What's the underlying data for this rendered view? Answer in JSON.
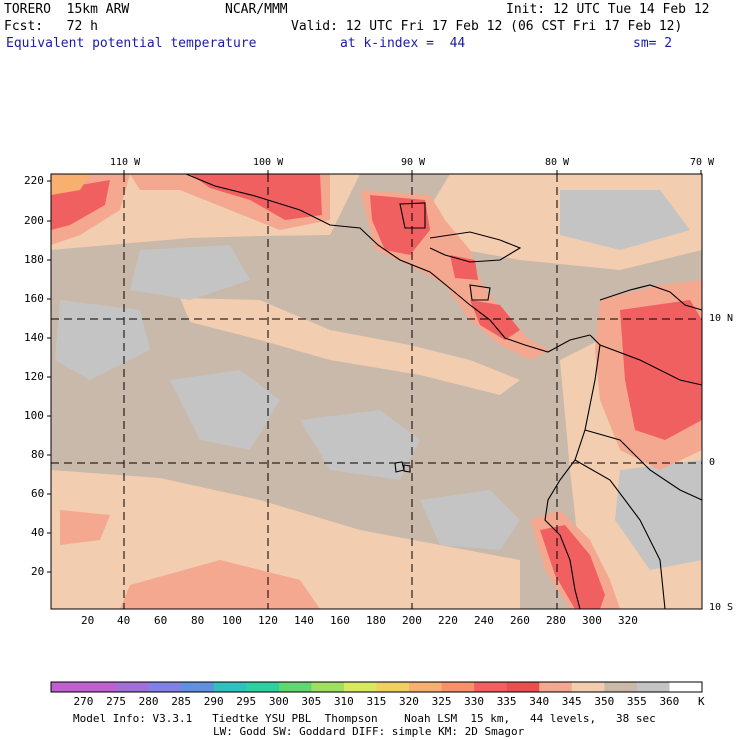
{
  "header": {
    "model": "TORERO  15km ARW",
    "org": "NCAR/MMM",
    "init": "Init: 12 UTC Tue 14 Feb 12",
    "fcst": "Fcst:   72 h",
    "valid": "Valid: 12 UTC Fri 17 Feb 12 (06 CST Fri 17 Feb 12)",
    "field": "Equivalent potential temperature",
    "level": "at k-index =  44",
    "smooth": "sm= 2"
  },
  "map": {
    "lon_labels": [
      "110 W",
      "100 W",
      "90 W",
      "80 W",
      "70 W"
    ],
    "lat_labels": [
      "10 N",
      "0",
      "10 S"
    ],
    "y_ticks": [
      "220",
      "200",
      "180",
      "160",
      "140",
      "120",
      "100",
      "80",
      "60",
      "40",
      "20"
    ],
    "x_ticks": [
      "20",
      "40",
      "60",
      "80",
      "100",
      "120",
      "140",
      "160",
      "180",
      "200",
      "220",
      "240",
      "260",
      "280",
      "300",
      "320"
    ]
  },
  "colorbar": {
    "labels": [
      "270",
      "275",
      "280",
      "285",
      "290",
      "295",
      "300",
      "305",
      "310",
      "315",
      "320",
      "325",
      "330",
      "335",
      "340",
      "345",
      "350",
      "355",
      "360"
    ],
    "unit": "K",
    "colors": [
      "#c060d0",
      "#a070d8",
      "#8080e8",
      "#6090e0",
      "#30c0c0",
      "#30d0a0",
      "#60d870",
      "#a0e060",
      "#d8e860",
      "#f0d060",
      "#f8b070",
      "#f89068",
      "#f06060",
      "#e85050",
      "#f4a890",
      "#f2cdb0",
      "#cab8a8",
      "#c4c4c4",
      "#ffffff"
    ]
  },
  "footer": {
    "line1": "Model Info: V3.3.1   Tiedtke YSU PBL  Thompson    Noah LSM  15 km,   44 levels,   38 sec",
    "line2": "LW: Godd SW: Goddard DIFF: simple KM: 2D Smagor"
  }
}
